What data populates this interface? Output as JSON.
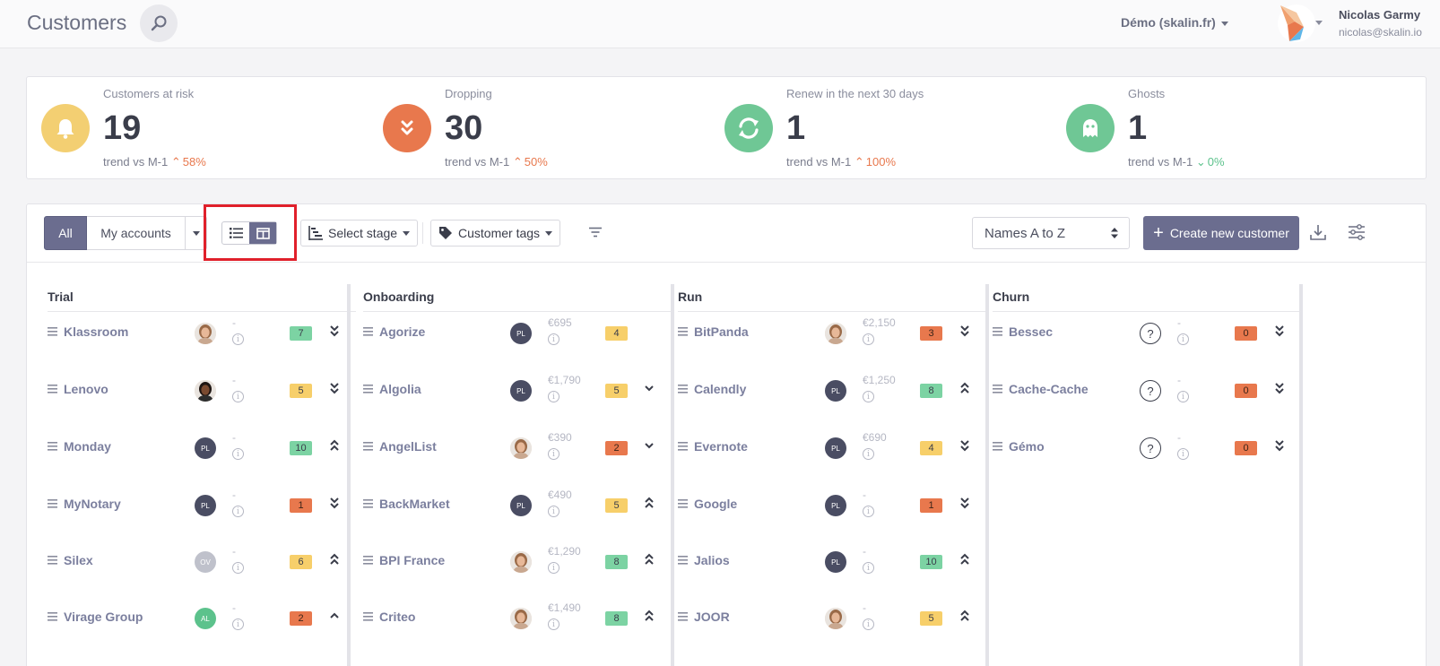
{
  "header": {
    "title": "Customers",
    "workspace": "Démo (skalin.fr)",
    "user_name": "Nicolas Garmy",
    "user_email": "nicolas@skalin.io"
  },
  "kpis": [
    {
      "label": "Customers at risk",
      "value": "19",
      "trend_label": "trend vs M-1",
      "trend_pct": "58%",
      "direction": "up",
      "color": "#f3cf72",
      "icon": "bell-icon"
    },
    {
      "label": "Dropping",
      "value": "30",
      "trend_label": "trend vs M-1",
      "trend_pct": "50%",
      "direction": "up",
      "color": "#e8784d",
      "icon": "double-chevron-down-icon"
    },
    {
      "label": "Renew in the next 30 days",
      "value": "1",
      "trend_label": "trend vs M-1",
      "trend_pct": "100%",
      "direction": "up",
      "color": "#6fc795",
      "icon": "refresh-icon"
    },
    {
      "label": "Ghosts",
      "value": "1",
      "trend_label": "trend vs M-1",
      "trend_pct": "0%",
      "direction": "down",
      "color": "#6fc795",
      "icon": "ghost-icon"
    }
  ],
  "toolbar": {
    "all_label": "All",
    "mine_label": "My accounts",
    "stage_label": "Select stage",
    "tags_label": "Customer tags",
    "sort_value": "Names A to Z",
    "create_label": "Create new customer"
  },
  "columns": [
    {
      "title": "Trial",
      "cards": [
        {
          "name": "Klassroom",
          "avatar": "photo",
          "initials": "",
          "mrr": "-",
          "score": "7",
          "level": "green",
          "trend": "double-down"
        },
        {
          "name": "Lenovo",
          "avatar": "photo-dark",
          "initials": "",
          "mrr": "-",
          "score": "5",
          "level": "yellow",
          "trend": "double-down"
        },
        {
          "name": "Monday",
          "avatar": "dark",
          "initials": "PL",
          "mrr": "-",
          "score": "10",
          "level": "green",
          "trend": "double-up"
        },
        {
          "name": "MyNotary",
          "avatar": "dark",
          "initials": "PL",
          "mrr": "-",
          "score": "1",
          "level": "orange",
          "trend": "double-down"
        },
        {
          "name": "Silex",
          "avatar": "grey",
          "initials": "OV",
          "mrr": "-",
          "score": "6",
          "level": "yellow",
          "trend": "double-up"
        },
        {
          "name": "Virage Group",
          "avatar": "green",
          "initials": "AL",
          "mrr": "-",
          "score": "2",
          "level": "orange",
          "trend": "up"
        }
      ]
    },
    {
      "title": "Onboarding",
      "cards": [
        {
          "name": "Agorize",
          "avatar": "dark",
          "initials": "PL",
          "mrr": "€695",
          "score": "4",
          "level": "yellow",
          "trend": "none"
        },
        {
          "name": "Algolia",
          "avatar": "dark",
          "initials": "PL",
          "mrr": "€1,790",
          "score": "5",
          "level": "yellow",
          "trend": "down"
        },
        {
          "name": "AngelList",
          "avatar": "photo",
          "initials": "",
          "mrr": "€390",
          "score": "2",
          "level": "orange",
          "trend": "down"
        },
        {
          "name": "BackMarket",
          "avatar": "dark",
          "initials": "PL",
          "mrr": "€490",
          "score": "5",
          "level": "yellow",
          "trend": "double-up"
        },
        {
          "name": "BPI France",
          "avatar": "photo",
          "initials": "",
          "mrr": "€1,290",
          "score": "8",
          "level": "green",
          "trend": "double-up"
        },
        {
          "name": "Criteo",
          "avatar": "photo",
          "initials": "",
          "mrr": "€1,490",
          "score": "8",
          "level": "green",
          "trend": "double-up"
        }
      ]
    },
    {
      "title": "Run",
      "cards": [
        {
          "name": "BitPanda",
          "avatar": "photo",
          "initials": "",
          "mrr": "€2,150",
          "score": "3",
          "level": "orange",
          "trend": "double-down"
        },
        {
          "name": "Calendly",
          "avatar": "dark",
          "initials": "PL",
          "mrr": "€1,250",
          "score": "8",
          "level": "green",
          "trend": "double-up"
        },
        {
          "name": "Evernote",
          "avatar": "dark",
          "initials": "PL",
          "mrr": "€690",
          "score": "4",
          "level": "yellow",
          "trend": "double-down"
        },
        {
          "name": "Google",
          "avatar": "dark",
          "initials": "PL",
          "mrr": "-",
          "score": "1",
          "level": "orange",
          "trend": "double-down"
        },
        {
          "name": "Jalios",
          "avatar": "dark",
          "initials": "PL",
          "mrr": "-",
          "score": "10",
          "level": "green",
          "trend": "double-up"
        },
        {
          "name": "JOOR",
          "avatar": "photo",
          "initials": "",
          "mrr": "-",
          "score": "5",
          "level": "yellow",
          "trend": "double-up"
        }
      ]
    },
    {
      "title": "Churn",
      "cards": [
        {
          "name": "Bessec",
          "avatar": "unknown",
          "initials": "?",
          "mrr": "-",
          "score": "0",
          "level": "orange",
          "trend": "double-down"
        },
        {
          "name": "Cache-Cache",
          "avatar": "unknown",
          "initials": "?",
          "mrr": "-",
          "score": "0",
          "level": "orange",
          "trend": "double-down"
        },
        {
          "name": "Gémo",
          "avatar": "unknown",
          "initials": "?",
          "mrr": "-",
          "score": "0",
          "level": "orange",
          "trend": "double-down"
        }
      ]
    }
  ]
}
